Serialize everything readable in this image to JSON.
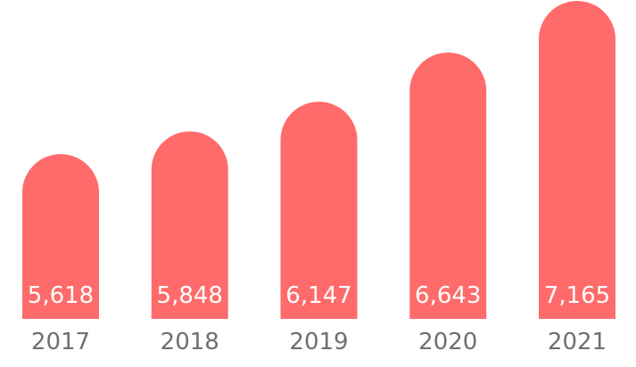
{
  "chart_data": {
    "type": "bar",
    "categories": [
      "2017",
      "2018",
      "2019",
      "2020",
      "2021"
    ],
    "values": [
      5618,
      5848,
      6147,
      6643,
      7165
    ],
    "value_labels": [
      "5,618",
      "5,848",
      "6,147",
      "6,643",
      "7,165"
    ],
    "title": "",
    "xlabel": "",
    "ylabel": "",
    "grid": false,
    "legend": "none",
    "bar_shape": "rounded-top",
    "colors": {
      "bar": "#ff6b6b",
      "value_label": "#ffffff",
      "tick_label": "#6f6f6f"
    }
  }
}
